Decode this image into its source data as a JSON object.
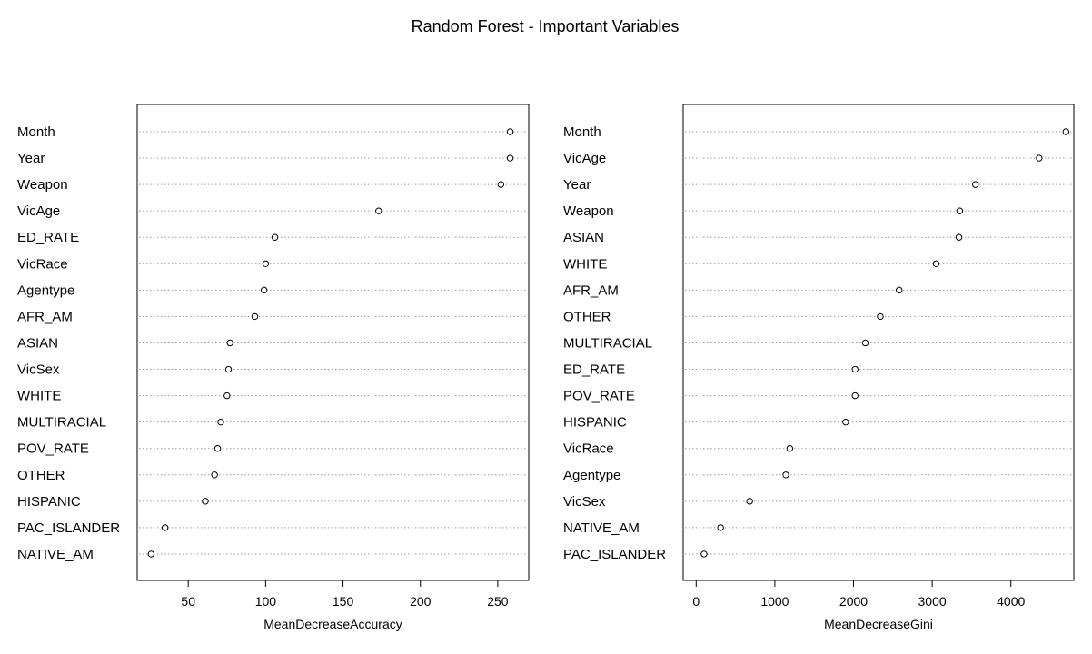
{
  "title": "Random Forest - Important Variables",
  "chart_data": [
    {
      "type": "scatter",
      "subtype": "dotchart",
      "xlabel": "MeanDecreaseAccuracy",
      "ylabel": "",
      "xlim": [
        17,
        270
      ],
      "xticks": [
        50,
        100,
        150,
        200,
        250
      ],
      "grid": "dotted horizontal lines per variable",
      "categories": [
        "Month",
        "Year",
        "Weapon",
        "VicAge",
        "ED_RATE",
        "VicRace",
        "Agentype",
        "AFR_AM",
        "ASIAN",
        "VicSex",
        "WHITE",
        "MULTIRACIAL",
        "POV_RATE",
        "OTHER",
        "HISPANIC",
        "PAC_ISLANDER",
        "NATIVE_AM"
      ],
      "values": [
        258,
        258,
        252,
        173,
        106,
        100,
        99,
        93,
        77,
        76,
        75,
        71,
        69,
        67,
        61,
        35,
        26
      ]
    },
    {
      "type": "scatter",
      "subtype": "dotchart",
      "xlabel": "MeanDecreaseGini",
      "ylabel": "",
      "xlim": [
        -165,
        4800
      ],
      "xticks": [
        0,
        1000,
        2000,
        3000,
        4000
      ],
      "grid": "dotted horizontal lines per variable",
      "categories": [
        "Month",
        "VicAge",
        "Year",
        "Weapon",
        "ASIAN",
        "WHITE",
        "AFR_AM",
        "OTHER",
        "MULTIRACIAL",
        "ED_RATE",
        "POV_RATE",
        "HISPANIC",
        "VicRace",
        "Agentype",
        "VicSex",
        "NATIVE_AM",
        "PAC_ISLANDER"
      ],
      "values": [
        4700,
        4360,
        3550,
        3350,
        3340,
        3050,
        2580,
        2340,
        2150,
        2020,
        2020,
        1900,
        1190,
        1140,
        680,
        310,
        100
      ]
    }
  ]
}
